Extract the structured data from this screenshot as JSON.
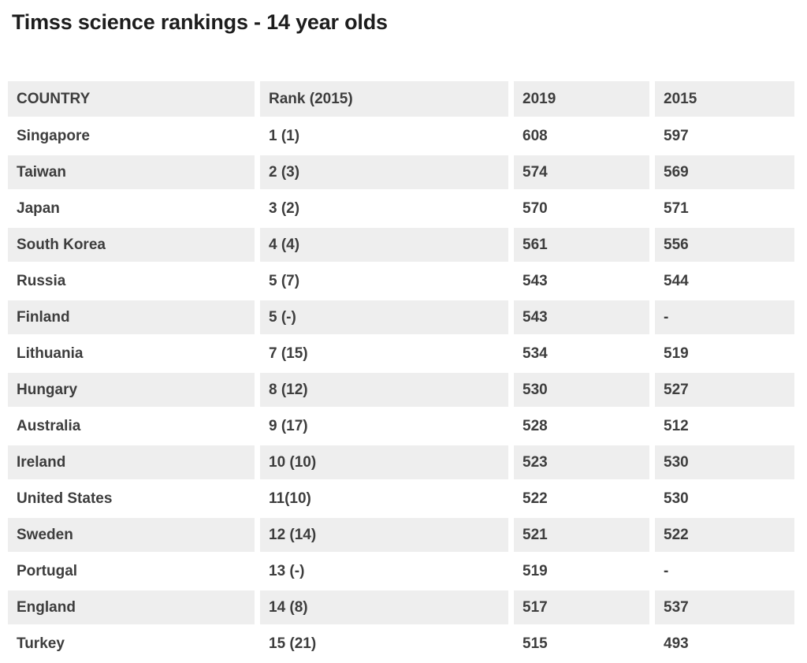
{
  "page": {
    "title": "Timss science rankings - 14 year olds"
  },
  "chart_data": {
    "type": "table",
    "title": "Timss science rankings - 14 year olds",
    "columns": [
      "COUNTRY",
      "Rank (2015)",
      "2019",
      "2015"
    ],
    "rows": [
      [
        "Singapore",
        "1 (1)",
        "608",
        "597"
      ],
      [
        "Taiwan",
        "2 (3)",
        "574",
        "569"
      ],
      [
        "Japan",
        "3 (2)",
        "570",
        "571"
      ],
      [
        "South Korea",
        "4 (4)",
        "561",
        "556"
      ],
      [
        "Russia",
        "5 (7)",
        "543",
        "544"
      ],
      [
        "Finland",
        "5 (-)",
        "543",
        "-"
      ],
      [
        "Lithuania",
        "7 (15)",
        "534",
        "519"
      ],
      [
        "Hungary",
        "8 (12)",
        "530",
        "527"
      ],
      [
        "Australia",
        "9 (17)",
        "528",
        "512"
      ],
      [
        "Ireland",
        "10 (10)",
        "523",
        "530"
      ],
      [
        "United States",
        "11(10)",
        "522",
        "530"
      ],
      [
        "Sweden",
        "12 (14)",
        "521",
        "522"
      ],
      [
        "Portugal",
        "13 (-)",
        "519",
        "-"
      ],
      [
        "England",
        "14 (8)",
        "517",
        "537"
      ],
      [
        "Turkey",
        "15 (21)",
        "515",
        "493"
      ]
    ],
    "layout": {
      "alternating_rows": true,
      "first_data_row_background": "white",
      "last_row_clipped_at_bottom": true
    }
  },
  "colors": {
    "background": "#ffffff",
    "row_alt": "#eeeeee",
    "text": "#3d3d3d",
    "title": "#1d1d1d"
  }
}
